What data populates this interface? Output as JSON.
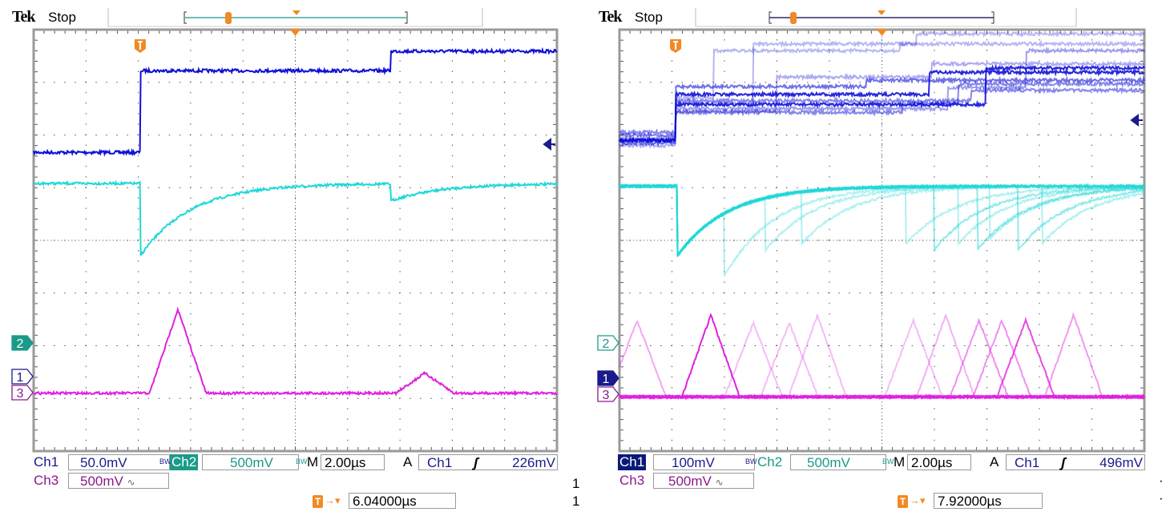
{
  "colors": {
    "ch1": "#1010d8",
    "ch2": "#20d8d8",
    "ch3": "#e020e0",
    "trigger": "#f08a24",
    "grid": "#555555"
  },
  "scopes": [
    {
      "brand": "Tek",
      "status": "Stop",
      "ch1": {
        "label": "Ch1",
        "scale": "50.0mV",
        "bw_icon": "bandwidth-limit-icon"
      },
      "ch2": {
        "label": "Ch2",
        "scale": "500mV",
        "bw_icon": "bandwidth-limit-icon"
      },
      "ch3": {
        "label": "Ch3",
        "scale": "500mV",
        "coupling_icon": "ac-coupling-icon"
      },
      "timebase": {
        "label": "M",
        "value": "2.00µs"
      },
      "trigger": {
        "label": "A",
        "source": "Ch1",
        "slope_icon": "rising-edge-icon",
        "level": "226mV"
      },
      "trigger_position": {
        "value": "6.04000µs"
      },
      "side_marks": [
        "1",
        "1"
      ],
      "markers": {
        "ch1": "1",
        "ch2": "2",
        "ch3": "3",
        "active": "ch2"
      }
    },
    {
      "brand": "Tek",
      "status": "Stop",
      "ch1": {
        "label": "Ch1",
        "scale": "100mV",
        "bw_icon": "bandwidth-limit-icon"
      },
      "ch2": {
        "label": "Ch2",
        "scale": "500mV",
        "bw_icon": "bandwidth-limit-icon"
      },
      "ch3": {
        "label": "Ch3",
        "scale": "500mV",
        "coupling_icon": "ac-coupling-icon"
      },
      "timebase": {
        "label": "M",
        "value": "2.00µs"
      },
      "trigger": {
        "label": "A",
        "source": "Ch1",
        "slope_icon": "rising-edge-icon",
        "level": "496mV"
      },
      "trigger_position": {
        "value": "7.92000µs"
      },
      "side_marks": [
        "·",
        "·"
      ],
      "markers": {
        "ch1": "1",
        "ch2": "2",
        "ch3": "3",
        "active": "ch1"
      }
    }
  ],
  "chart_data": [
    {
      "type": "line",
      "title": "",
      "xlabel": "",
      "ylabel": "",
      "x_unit": "µs from left edge of screen",
      "y_unit": "divisions from screen centre",
      "xlim": [
        0,
        20
      ],
      "ylim": [
        -4,
        4
      ],
      "grid": true,
      "divisions": [
        10,
        8
      ],
      "trigger_time": 4.07,
      "ch1_traces": [
        {
          "steps": [
            [
              0,
              1.67
            ],
            [
              4.07,
              3.22
            ],
            [
              13.66,
              3.59
            ]
          ],
          "opacity": 1
        }
      ],
      "ch2_traces": [
        {
          "base": 1.08,
          "events": [
            [
              4.07,
              1.38
            ],
            [
              13.66,
              0.32
            ]
          ],
          "tau": 1.9,
          "opacity": 1
        }
      ],
      "ch3_traces": [
        {
          "base": -2.9,
          "pulses": [
            [
              5.51,
              1.59,
              1.08
            ],
            [
              14.95,
              0.38,
              1.1
            ]
          ],
          "opacity": 1
        }
      ]
    },
    {
      "type": "line",
      "title": "",
      "xlabel": "",
      "ylabel": "",
      "x_unit": "µs from left edge of screen",
      "y_unit": "divisions from screen centre",
      "xlim": [
        0,
        20
      ],
      "ylim": [
        -4,
        4
      ],
      "grid": true,
      "divisions": [
        10,
        8
      ],
      "trigger_time": 2.14,
      "ch1_traces": [
        {
          "steps": [
            [
              0,
              1.9
            ],
            [
              2.14,
              2.58
            ],
            [
              13.95,
              3.27
            ]
          ],
          "opacity": 0.9
        },
        {
          "steps": [
            [
              0,
              1.9
            ],
            [
              2.14,
              2.77
            ],
            [
              11.8,
              3.19
            ]
          ],
          "opacity": 0.9
        },
        {
          "steps": [
            [
              0,
              1.85
            ],
            [
              2.14,
              2.92
            ],
            [
              9.4,
              3.04
            ]
          ],
          "opacity": 0.6
        },
        {
          "steps": [
            [
              0,
              2.0
            ],
            [
              2.14,
              2.43
            ],
            [
              10.8,
              2.6
            ],
            [
              12.9,
              2.97
            ]
          ],
          "opacity": 0.5
        },
        {
          "steps": [
            [
              0,
              1.9
            ],
            [
              2.14,
              2.7
            ],
            [
              3.6,
              3.6
            ],
            [
              10.7,
              3.73
            ]
          ],
          "opacity": 0.3
        },
        {
          "steps": [
            [
              0,
              1.95
            ],
            [
              2.14,
              2.6
            ],
            [
              5.1,
              3.73
            ],
            [
              11.3,
              3.92
            ]
          ],
          "opacity": 0.3
        },
        {
          "steps": [
            [
              0,
              1.8
            ],
            [
              2.14,
              2.45
            ],
            [
              6.0,
              3.1
            ],
            [
              11.9,
              3.35
            ]
          ],
          "opacity": 0.35
        },
        {
          "steps": [
            [
              0,
              1.9
            ],
            [
              2.14,
              2.5
            ],
            [
              12.5,
              2.9
            ],
            [
              15.5,
              3.6
            ]
          ],
          "opacity": 0.4
        },
        {
          "steps": [
            [
              0,
              2.05
            ],
            [
              2.14,
              2.65
            ],
            [
              13.4,
              2.85
            ]
          ],
          "opacity": 0.5
        }
      ],
      "ch2_traces": [
        {
          "base": 1.03,
          "events": [
            [
              2.2,
              1.33
            ]
          ],
          "tau": 1.9,
          "opacity": 0.9
        },
        {
          "base": 1.03,
          "events": [
            [
              2.2,
              1.33
            ],
            [
              4.0,
              1.2
            ]
          ],
          "tau": 1.9,
          "opacity": 0.35
        },
        {
          "base": 1.03,
          "events": [
            [
              2.2,
              1.33
            ],
            [
              5.56,
              1.0
            ]
          ],
          "tau": 1.9,
          "opacity": 0.35
        },
        {
          "base": 1.03,
          "events": [
            [
              2.2,
              1.33
            ],
            [
              6.93,
              1.0
            ]
          ],
          "tau": 1.9,
          "opacity": 0.35
        },
        {
          "base": 1.03,
          "events": [
            [
              2.2,
              1.33
            ],
            [
              10.9,
              1.1
            ]
          ],
          "tau": 1.9,
          "opacity": 0.35
        },
        {
          "base": 1.03,
          "events": [
            [
              2.2,
              1.33
            ],
            [
              12.0,
              1.2
            ]
          ],
          "tau": 1.9,
          "opacity": 0.5
        },
        {
          "base": 1.03,
          "events": [
            [
              2.2,
              1.33
            ],
            [
              12.9,
              1.1
            ]
          ],
          "tau": 1.9,
          "opacity": 0.35
        },
        {
          "base": 1.03,
          "events": [
            [
              2.2,
              1.33
            ],
            [
              13.65,
              1.2
            ]
          ],
          "tau": 1.9,
          "opacity": 0.5
        },
        {
          "base": 1.03,
          "events": [
            [
              2.2,
              1.33
            ],
            [
              14.1,
              1.0
            ]
          ],
          "tau": 1.9,
          "opacity": 0.35
        },
        {
          "base": 1.03,
          "events": [
            [
              2.2,
              1.33
            ],
            [
              15.2,
              1.2
            ]
          ],
          "tau": 1.9,
          "opacity": 0.5
        },
        {
          "base": 1.03,
          "events": [
            [
              2.2,
              1.33
            ],
            [
              16.1,
              1.1
            ]
          ],
          "tau": 1.9,
          "opacity": 0.35
        }
      ],
      "ch3_traces": [
        {
          "base": -2.97,
          "pulses": [
            [
              3.48,
              1.55,
              1.1
            ]
          ],
          "opacity": 1
        },
        {
          "base": -2.97,
          "pulses": [
            [
              0.67,
              1.45,
              1.1
            ]
          ],
          "opacity": 0.4
        },
        {
          "base": -2.97,
          "pulses": [
            [
              5.1,
              1.4,
              1.1
            ]
          ],
          "opacity": 0.3
        },
        {
          "base": -2.97,
          "pulses": [
            [
              6.47,
              1.4,
              1.1
            ]
          ],
          "opacity": 0.3
        },
        {
          "base": -2.97,
          "pulses": [
            [
              7.54,
              1.55,
              1.1
            ]
          ],
          "opacity": 0.3
        },
        {
          "base": -2.97,
          "pulses": [
            [
              11.2,
              1.45,
              1.1
            ]
          ],
          "opacity": 0.3
        },
        {
          "base": -2.97,
          "pulses": [
            [
              12.43,
              1.55,
              1.1
            ]
          ],
          "opacity": 0.35
        },
        {
          "base": -2.97,
          "pulses": [
            [
              13.7,
              1.45,
              1.1
            ]
          ],
          "opacity": 0.5
        },
        {
          "base": -2.97,
          "pulses": [
            [
              14.57,
              1.45,
              1.1
            ]
          ],
          "opacity": 0.5
        },
        {
          "base": -2.97,
          "pulses": [
            [
              15.48,
              1.45,
              1.1
            ]
          ],
          "opacity": 0.8
        },
        {
          "base": -2.97,
          "pulses": [
            [
              17.3,
              1.55,
              1.1
            ]
          ],
          "opacity": 0.45
        }
      ]
    }
  ]
}
